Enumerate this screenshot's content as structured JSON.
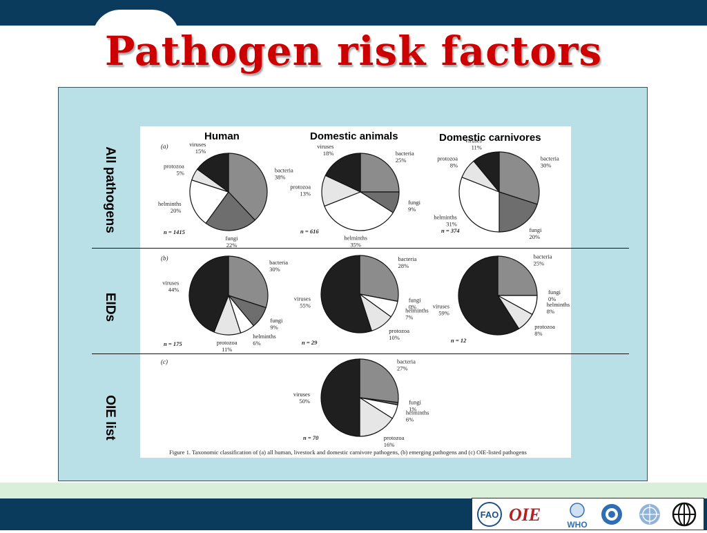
{
  "slide": {
    "title": "Pathogen risk factors",
    "row_labels": [
      "All pathogens",
      "EIDs",
      "OIE list"
    ],
    "column_headers": [
      "Human",
      "Domestic animals",
      "Domestic carnivores"
    ],
    "caption": "Figure 1.  Taxonomic classification of (a) all human, livestock and domestic carnivore pathogens, (b) emerging pathogens and (c) OIE-listed pathogens",
    "panel_letters": [
      "(a)",
      "(b)",
      "(c)"
    ]
  },
  "colors": {
    "bacteria": "#8c8c8c",
    "fungi": "#6e6e6e",
    "helminths": "#ffffff",
    "protozoa": "#e6e6e6",
    "viruses": "#1f1f1f",
    "title": "#cc0000",
    "bars": "#0b3b5c",
    "panel_bg": "#b9e0e6"
  },
  "logos": [
    "FAO",
    "OIE",
    "WHO",
    "UNICEF",
    "UN",
    "World Bank"
  ],
  "logo_text": {
    "oie": "OIE",
    "who": "WHO"
  },
  "chart_data": [
    {
      "type": "pie",
      "row": "(a)",
      "column": "Human",
      "n": "n = 1415",
      "slices": [
        {
          "label": "bacteria",
          "value": 38
        },
        {
          "label": "fungi",
          "value": 22
        },
        {
          "label": "helminths",
          "value": 20
        },
        {
          "label": "protozoa",
          "value": 5
        },
        {
          "label": "viruses",
          "value": 15
        }
      ]
    },
    {
      "type": "pie",
      "row": "(a)",
      "column": "Domestic animals",
      "n": "n = 616",
      "slices": [
        {
          "label": "bacteria",
          "value": 25
        },
        {
          "label": "fungi",
          "value": 9
        },
        {
          "label": "helminths",
          "value": 35
        },
        {
          "label": "protozoa",
          "value": 13
        },
        {
          "label": "viruses",
          "value": 18
        }
      ]
    },
    {
      "type": "pie",
      "row": "(a)",
      "column": "Domestic carnivores",
      "n": "n = 374",
      "slices": [
        {
          "label": "bacteria",
          "value": 30
        },
        {
          "label": "fungi",
          "value": 20
        },
        {
          "label": "helminths",
          "value": 31
        },
        {
          "label": "protozoa",
          "value": 8
        },
        {
          "label": "viruses",
          "value": 11
        }
      ]
    },
    {
      "type": "pie",
      "row": "(b)",
      "column": "Human",
      "n": "n = 175",
      "slices": [
        {
          "label": "bacteria",
          "value": 30
        },
        {
          "label": "fungi",
          "value": 9
        },
        {
          "label": "helminths",
          "value": 6
        },
        {
          "label": "protozoa",
          "value": 11
        },
        {
          "label": "viruses",
          "value": 44
        }
      ]
    },
    {
      "type": "pie",
      "row": "(b)",
      "column": "Domestic animals",
      "n": "n = 29",
      "slices": [
        {
          "label": "bacteria",
          "value": 28
        },
        {
          "label": "fungi",
          "value": 0
        },
        {
          "label": "helminths",
          "value": 7
        },
        {
          "label": "protozoa",
          "value": 10
        },
        {
          "label": "viruses",
          "value": 55
        }
      ]
    },
    {
      "type": "pie",
      "row": "(b)",
      "column": "Domestic carnivores",
      "n": "n = 12",
      "slices": [
        {
          "label": "bacteria",
          "value": 25
        },
        {
          "label": "fungi",
          "value": 0
        },
        {
          "label": "helminths",
          "value": 8
        },
        {
          "label": "protozoa",
          "value": 8
        },
        {
          "label": "viruses",
          "value": 59
        }
      ]
    },
    {
      "type": "pie",
      "row": "(c)",
      "column": "Domestic animals",
      "n": "n = 70",
      "slices": [
        {
          "label": "bacteria",
          "value": 27
        },
        {
          "label": "fungi",
          "value": 1
        },
        {
          "label": "helminths",
          "value": 6
        },
        {
          "label": "protozoa",
          "value": 16
        },
        {
          "label": "viruses",
          "value": 50
        }
      ]
    }
  ]
}
